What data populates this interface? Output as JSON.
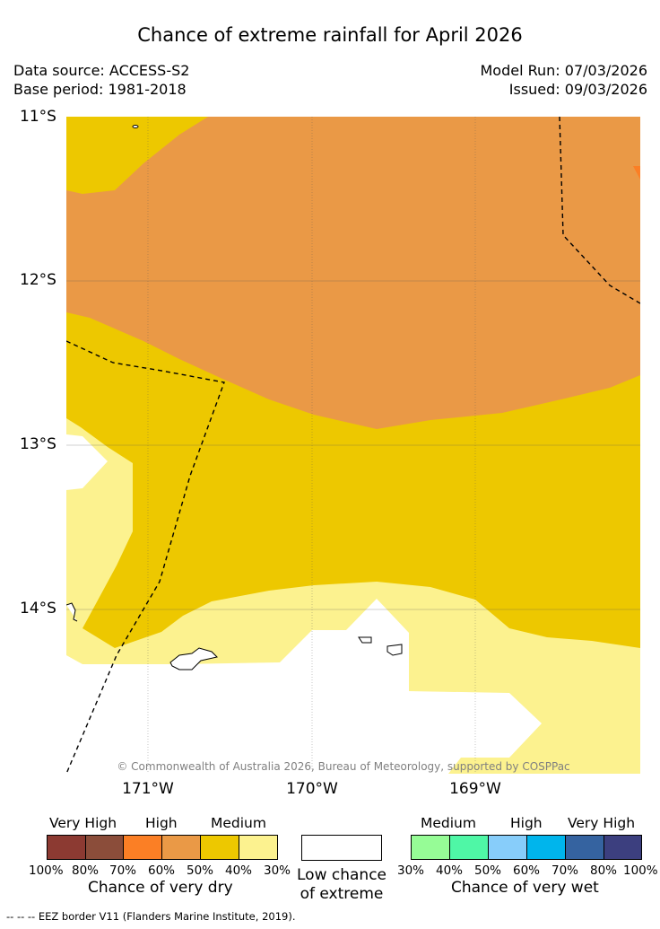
{
  "title": "Chance of extreme rainfall for April 2026",
  "data_source": "Data source: ACCESS-S2",
  "base_period": "Base period: 1981-2018",
  "model_run": "Model Run: 07/03/2026",
  "issued": "Issued: 09/03/2026",
  "latitude_labels": [
    "11°S",
    "12°S",
    "13°S",
    "14°S"
  ],
  "longitude_labels": [
    "171°W",
    "170°W",
    "169°W"
  ],
  "copyright": "© Commonwealth of Australia 2026, Bureau of Meteorology, supported by COSPPac",
  "dry_legend": {
    "categories": [
      "Very High",
      "High",
      "Medium"
    ],
    "percent_labels": [
      "100%",
      "80%",
      "70%",
      "60%",
      "50%",
      "40%",
      "30%"
    ],
    "colors": [
      "#8c3a32",
      "#8b4d3a",
      "#fb7f25",
      "#ea9946",
      "#edc800",
      "#fcf28f"
    ],
    "caption": "Chance of very dry"
  },
  "low_chance_legend": {
    "line1": "Low chance",
    "line2": "of extreme",
    "color": "#ffffff"
  },
  "wet_legend": {
    "categories": [
      "Medium",
      "High",
      "Very High"
    ],
    "percent_labels": [
      "30%",
      "40%",
      "50%",
      "60%",
      "70%",
      "80%",
      "100%"
    ],
    "colors": [
      "#96fc96",
      "#4ff7a6",
      "#87cdfa",
      "#00b5ec",
      "#3563a0",
      "#3c3f7f"
    ],
    "caption": "Chance of very wet"
  },
  "footer_note": "--  --  -- EEZ border V11 (Flanders Marine Institute, 2019).",
  "map_colors": {
    "high_dry": "#ea9946",
    "very_high_dry": "#fb7f25",
    "medium_dry": "#edc800",
    "low_dry": "#fcf28f",
    "no_signal": "#ffffff"
  }
}
